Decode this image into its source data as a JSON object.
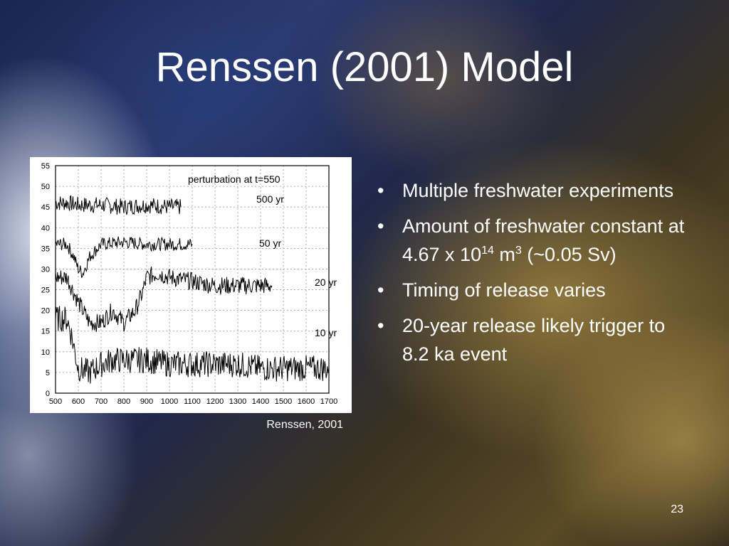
{
  "slide": {
    "title": "Renssen (2001) Model",
    "caption": "Renssen, 2001",
    "page_number": "23",
    "bullets": [
      {
        "text": "Multiple freshwater experiments"
      },
      {
        "text_pre": "Amount of freshwater constant at 4.67 x 10",
        "sup1": "14",
        "mid": " m",
        "sup2": "3",
        "text_post": " (~0.05 Sv)"
      },
      {
        "text": "Timing of release varies"
      },
      {
        "text": "20-year release likely trigger to 8.2 ka event"
      }
    ],
    "bullet_glyph": "•"
  },
  "chart_data": {
    "type": "line",
    "title": "",
    "annotation": "perturbation at t=550",
    "xlim": [
      500,
      1700
    ],
    "ylim": [
      0,
      55
    ],
    "x_ticks": [
      "500",
      "600",
      "700",
      "800",
      "900",
      "1000",
      "1100",
      "1200",
      "1300",
      "1400",
      "1500",
      "1600",
      "1700"
    ],
    "y_ticks": [
      "0",
      "5",
      "10",
      "15",
      "20",
      "25",
      "30",
      "35",
      "40",
      "45",
      "50",
      "55"
    ],
    "grid": true,
    "series": [
      {
        "name": "500 yr",
        "x": [
          500,
          550,
          600,
          700,
          800,
          900,
          1000,
          1050
        ],
        "y": [
          46,
          46,
          45.5,
          45.5,
          45,
          45.5,
          45,
          45
        ]
      },
      {
        "name": "50 yr",
        "x": [
          500,
          550,
          580,
          600,
          620,
          650,
          700,
          800,
          900,
          1000,
          1100
        ],
        "y": [
          36,
          36,
          33,
          30,
          29,
          33,
          36,
          36.5,
          36,
          36,
          36
        ]
      },
      {
        "name": "20 yr",
        "x": [
          500,
          550,
          600,
          650,
          700,
          750,
          800,
          850,
          880,
          900,
          950,
          1000,
          1100,
          1200,
          1300,
          1400,
          1450
        ],
        "y": [
          28,
          28,
          22,
          17,
          17,
          20,
          17,
          20,
          24,
          28,
          29,
          28,
          27,
          26,
          26,
          26,
          26
        ]
      },
      {
        "name": "10 yr",
        "x": [
          500,
          550,
          570,
          600,
          650,
          700,
          750,
          800,
          900,
          1000,
          1100,
          1200,
          1300,
          1400,
          1500,
          1600,
          1700
        ],
        "y": [
          18,
          18,
          14,
          6,
          5,
          7,
          8,
          8,
          8,
          7,
          7,
          7,
          7,
          6,
          6,
          6,
          6
        ]
      }
    ]
  }
}
